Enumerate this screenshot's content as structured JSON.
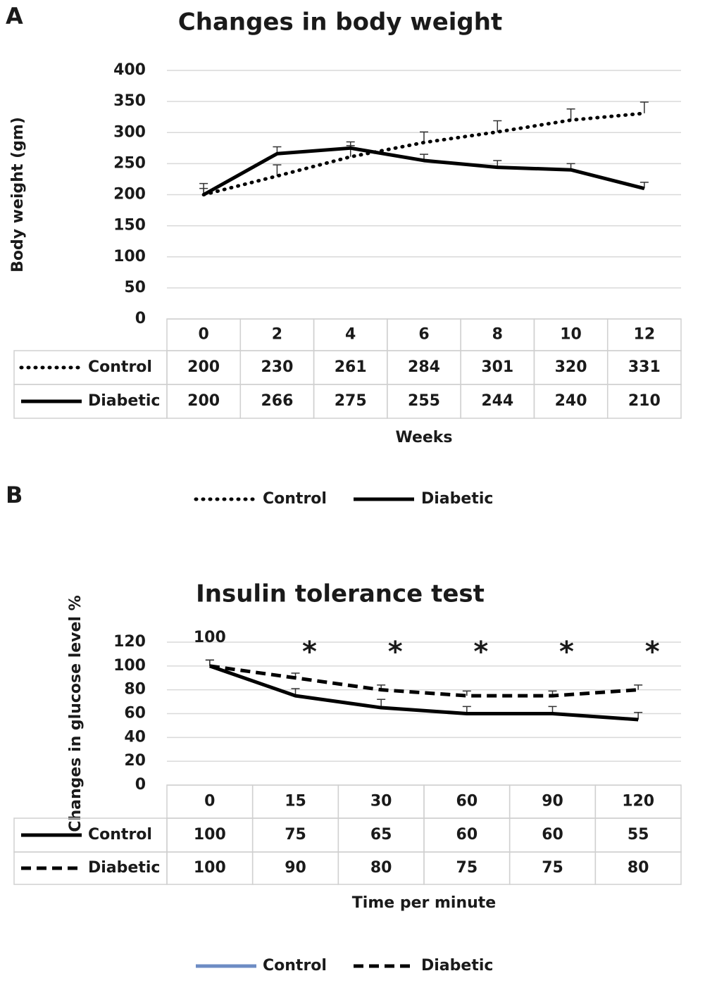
{
  "chart_data": [
    {
      "type": "line",
      "panel": "A",
      "title": "Changes in body weight",
      "y_label": "Body weight (gm)",
      "x_label": "Weeks",
      "categories": [
        "0",
        "2",
        "4",
        "6",
        "8",
        "10",
        "12"
      ],
      "series": [
        {
          "name": "Control",
          "color": "#000000",
          "dash": "dotted",
          "values": [
            200,
            230,
            261,
            284,
            301,
            320,
            331
          ],
          "errors": [
            18,
            18,
            18,
            17,
            18,
            18,
            18
          ]
        },
        {
          "name": "Diabetic",
          "color": "#000000",
          "dash": "solid",
          "values": [
            200,
            266,
            275,
            255,
            244,
            240,
            210
          ],
          "errors": [
            10,
            11,
            10,
            10,
            11,
            10,
            10
          ]
        }
      ],
      "ylim": [
        0,
        400
      ],
      "yticks": [
        0,
        50,
        100,
        150,
        200,
        250,
        300,
        350,
        400
      ],
      "grid": true,
      "data_table": true,
      "legend": "bottom"
    },
    {
      "type": "line",
      "panel": "B",
      "title": "Insulin tolerance test",
      "y_label": "Changes in glucose level %",
      "x_label": "Time per minute",
      "categories": [
        "0",
        "15",
        "30",
        "60",
        "90",
        "120"
      ],
      "series": [
        {
          "name": "Control",
          "color": "#000000",
          "dash": "solid",
          "values": [
            100,
            75,
            65,
            60,
            60,
            55
          ],
          "errors": [
            5,
            6,
            7,
            6,
            6,
            6
          ]
        },
        {
          "name": "Diabetic",
          "color": "#000000",
          "dash": "dashed",
          "values": [
            100,
            90,
            80,
            75,
            75,
            80
          ],
          "errors": [
            5,
            4,
            4,
            4,
            4,
            4
          ]
        }
      ],
      "legend_colors": [
        "#6d8cc4",
        "#000000"
      ],
      "annotations": [
        "100",
        "*",
        "*",
        "*",
        "*",
        "*"
      ],
      "ylim": [
        0,
        120
      ],
      "yticks": [
        0,
        20,
        40,
        60,
        80,
        100,
        120
      ],
      "grid": true,
      "data_table": true,
      "legend": "bottom"
    }
  ]
}
